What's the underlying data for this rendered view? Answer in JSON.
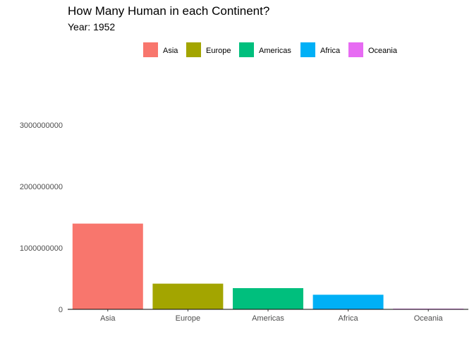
{
  "chart_data": {
    "type": "bar",
    "title": "How Many Human in each Continent?",
    "subtitle": "Year: 1952",
    "xlabel": "",
    "ylabel": "",
    "categories": [
      "Asia",
      "Europe",
      "Americas",
      "Africa",
      "Oceania"
    ],
    "values": [
      1395357352,
      418120846,
      345152446,
      237640501,
      10686006
    ],
    "colors": [
      "#F8766D",
      "#A3A500",
      "#00BF7D",
      "#00B0F6",
      "#E76BF3"
    ],
    "ylim": [
      0,
      3000000000
    ],
    "yticks": [
      0,
      1000000000,
      2000000000,
      3000000000
    ],
    "ytick_labels": [
      "0",
      "1000000000",
      "2000000000",
      "3000000000"
    ],
    "legend": {
      "position": "top",
      "entries": [
        "Asia",
        "Europe",
        "Americas",
        "Africa",
        "Oceania"
      ]
    },
    "grid": false
  }
}
